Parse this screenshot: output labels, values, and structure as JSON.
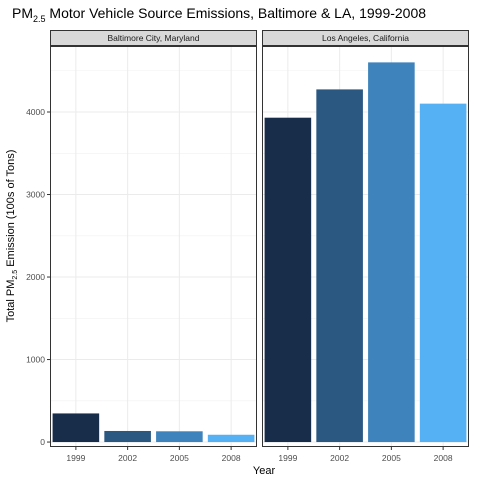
{
  "chart_data": {
    "type": "bar",
    "title": {
      "prefix": "PM",
      "subscript": "2.5",
      "suffix": " Motor Vehicle Source Emissions, Baltimore & LA, 1999-2008"
    },
    "xlabel": "Year",
    "ylabel": {
      "prefix": "Total PM",
      "subscript": "2.5",
      "suffix": " Emission (100s of Tons)"
    },
    "categories": [
      "1999",
      "2002",
      "2005",
      "2008"
    ],
    "ylim": [
      -60,
      4800
    ],
    "yticks": [
      0,
      1000,
      2000,
      3000,
      4000
    ],
    "grid": true,
    "legend": "none",
    "bar_colors": [
      "#182d49",
      "#2a5880",
      "#3e83bb",
      "#56b0f4"
    ],
    "panels": [
      {
        "label": "Baltimore City, Maryland",
        "values": [
          346.8,
          134.3,
          130.4,
          88.3
        ]
      },
      {
        "label": "Los Angeles, California",
        "values": [
          3931.1,
          4274.0,
          4601.4,
          4101.3
        ]
      }
    ]
  }
}
